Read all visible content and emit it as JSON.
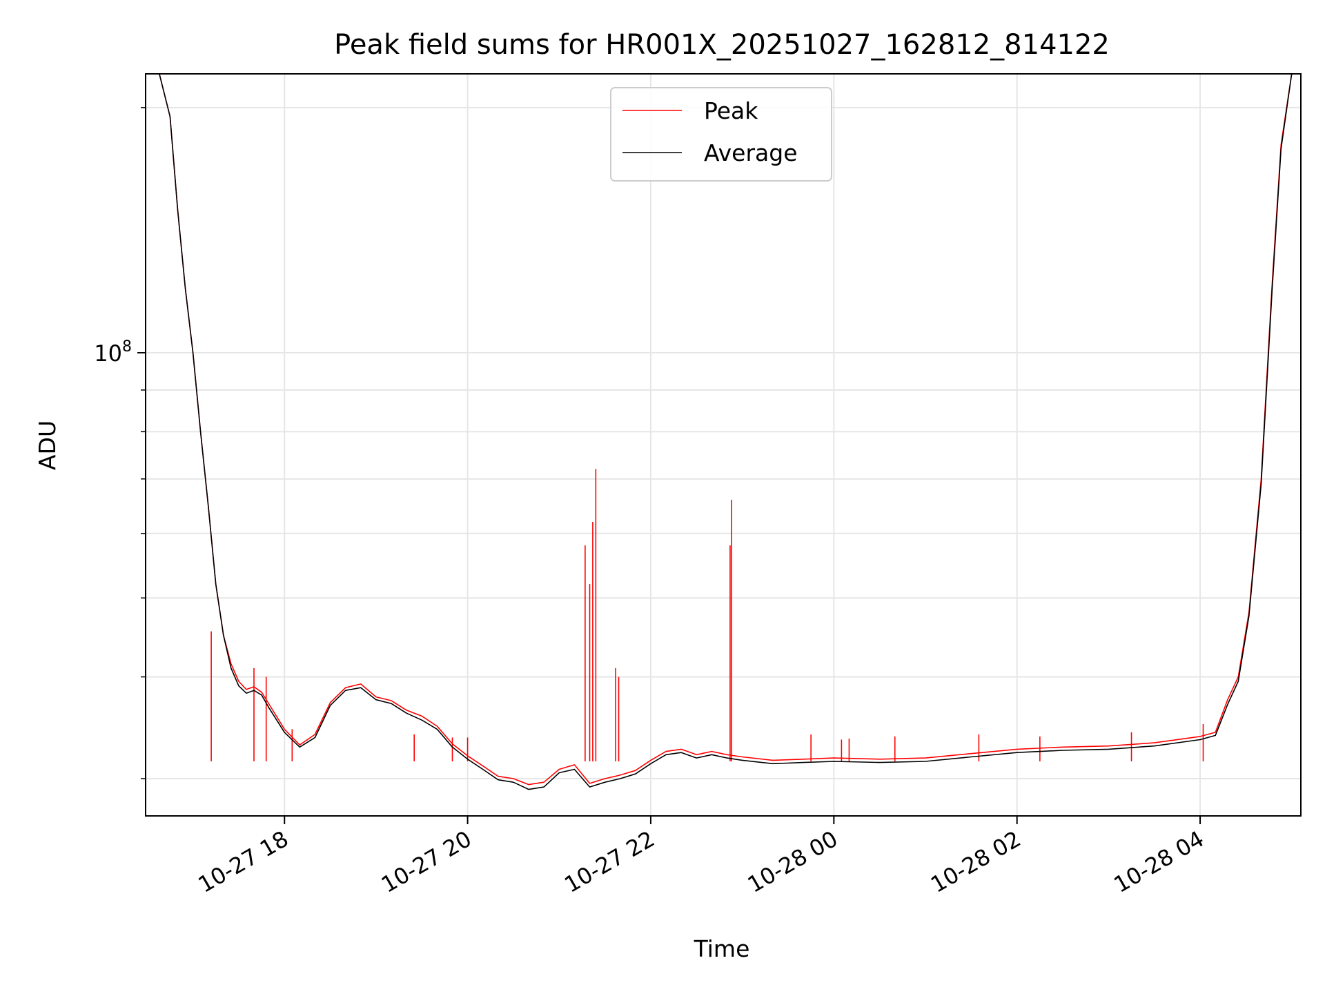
{
  "chart_data": {
    "type": "line",
    "title": "Peak field sums for HR001X_20251027_162812_814122",
    "xlabel": "Time",
    "ylabel": "ADU",
    "y_scale": "log",
    "ylim": [
      27000000,
      220000000
    ],
    "xlim": [
      "2025-10-27 16:29",
      "2025-10-28 05:06"
    ],
    "grid": true,
    "legend": "upper center",
    "x_ticks": [
      "2025-10-27 18:00",
      "2025-10-27 20:00",
      "2025-10-27 22:00",
      "2025-10-28 00:00",
      "2025-10-28 02:00",
      "2025-10-28 04:00"
    ],
    "x_tick_labels": [
      "10-27 18",
      "10-27 20",
      "10-27 22",
      "10-28 00",
      "10-28 02",
      "10-28 04"
    ],
    "y_major_ticks": [
      100000000
    ],
    "y_major_tick_labels": [
      "10",
      "8"
    ],
    "y_minor_ticks": [
      30000000,
      40000000,
      50000000,
      60000000,
      70000000,
      80000000,
      90000000,
      200000000
    ],
    "series": [
      {
        "name": "Peak",
        "color": "#ff0000",
        "points": [
          [
            "2025-10-27 16:29",
            220000000
          ],
          [
            "2025-10-27 16:38",
            220000000
          ],
          [
            "2025-10-27 16:45",
            195000000
          ],
          [
            "2025-10-27 16:50",
            150000000
          ],
          [
            "2025-10-27 16:55",
            120000000
          ],
          [
            "2025-10-27 17:00",
            100000000
          ],
          [
            "2025-10-27 17:05",
            80000000
          ],
          [
            "2025-10-27 17:10",
            65000000
          ],
          [
            "2025-10-27 17:15",
            52000000
          ],
          [
            "2025-10-27 17:20",
            45000000
          ],
          [
            "2025-10-27 17:25",
            41500000
          ],
          [
            "2025-10-27 17:30",
            39500000
          ],
          [
            "2025-10-27 17:35",
            38600000
          ],
          [
            "2025-10-27 17:40",
            38900000
          ],
          [
            "2025-10-27 17:45",
            38300000
          ],
          [
            "2025-10-27 17:50",
            37000000
          ],
          [
            "2025-10-27 18:00",
            34500000
          ],
          [
            "2025-10-27 18:10",
            33000000
          ],
          [
            "2025-10-27 18:20",
            34000000
          ],
          [
            "2025-10-27 18:30",
            37200000
          ],
          [
            "2025-10-27 18:40",
            38800000
          ],
          [
            "2025-10-27 18:50",
            39200000
          ],
          [
            "2025-10-27 19:00",
            37800000
          ],
          [
            "2025-10-27 19:10",
            37400000
          ],
          [
            "2025-10-27 19:20",
            36400000
          ],
          [
            "2025-10-27 19:30",
            35800000
          ],
          [
            "2025-10-27 19:40",
            34800000
          ],
          [
            "2025-10-27 19:50",
            33100000
          ],
          [
            "2025-10-27 20:00",
            32000000
          ],
          [
            "2025-10-27 20:10",
            31100000
          ],
          [
            "2025-10-27 20:20",
            30200000
          ],
          [
            "2025-10-27 20:30",
            30000000
          ],
          [
            "2025-10-27 20:40",
            29500000
          ],
          [
            "2025-10-27 20:50",
            29700000
          ],
          [
            "2025-10-27 21:00",
            30800000
          ],
          [
            "2025-10-27 21:10",
            31200000
          ],
          [
            "2025-10-27 21:20",
            29600000
          ],
          [
            "2025-10-27 21:30",
            30000000
          ],
          [
            "2025-10-27 21:40",
            30300000
          ],
          [
            "2025-10-27 21:50",
            30700000
          ],
          [
            "2025-10-27 22:00",
            31600000
          ],
          [
            "2025-10-27 22:10",
            32400000
          ],
          [
            "2025-10-27 22:20",
            32600000
          ],
          [
            "2025-10-27 22:30",
            32100000
          ],
          [
            "2025-10-27 22:40",
            32400000
          ],
          [
            "2025-10-27 22:50",
            32100000
          ],
          [
            "2025-10-27 23:00",
            31900000
          ],
          [
            "2025-10-27 23:20",
            31600000
          ],
          [
            "2025-10-27 23:40",
            31700000
          ],
          [
            "2025-10-28 00:00",
            31800000
          ],
          [
            "2025-10-28 00:30",
            31700000
          ],
          [
            "2025-10-28 01:00",
            31800000
          ],
          [
            "2025-10-28 01:30",
            32200000
          ],
          [
            "2025-10-28 02:00",
            32600000
          ],
          [
            "2025-10-28 02:30",
            32800000
          ],
          [
            "2025-10-28 03:00",
            32900000
          ],
          [
            "2025-10-28 03:30",
            33200000
          ],
          [
            "2025-10-28 04:00",
            33800000
          ],
          [
            "2025-10-28 04:10",
            34200000
          ],
          [
            "2025-10-28 04:18",
            37500000
          ],
          [
            "2025-10-28 04:25",
            40000000
          ],
          [
            "2025-10-28 04:32",
            48000000
          ],
          [
            "2025-10-28 04:40",
            70000000
          ],
          [
            "2025-10-28 04:47",
            120000000
          ],
          [
            "2025-10-28 04:53",
            180000000
          ],
          [
            "2025-10-28 05:00",
            220000000
          ],
          [
            "2025-10-28 05:06",
            220000000
          ]
        ],
        "spikes": [
          [
            "2025-10-27 17:12",
            45500000
          ],
          [
            "2025-10-27 17:40",
            41000000
          ],
          [
            "2025-10-27 17:48",
            40000000
          ],
          [
            "2025-10-27 18:05",
            34500000
          ],
          [
            "2025-10-27 19:25",
            34000000
          ],
          [
            "2025-10-27 19:50",
            33700000
          ],
          [
            "2025-10-27 20:00",
            33700000
          ],
          [
            "2025-10-27 21:17",
            58000000
          ],
          [
            "2025-10-27 21:20",
            52000000
          ],
          [
            "2025-10-27 21:22",
            62000000
          ],
          [
            "2025-10-27 21:24",
            72000000
          ],
          [
            "2025-10-27 21:37",
            41000000
          ],
          [
            "2025-10-27 21:39",
            40000000
          ],
          [
            "2025-10-27 22:52",
            58000000
          ],
          [
            "2025-10-27 22:53",
            66000000
          ],
          [
            "2025-10-27 23:45",
            34000000
          ],
          [
            "2025-10-28 00:05",
            33500000
          ],
          [
            "2025-10-28 00:10",
            33600000
          ],
          [
            "2025-10-28 00:40",
            33800000
          ],
          [
            "2025-10-28 01:35",
            34000000
          ],
          [
            "2025-10-28 02:15",
            33800000
          ],
          [
            "2025-10-28 03:15",
            34200000
          ],
          [
            "2025-10-28 04:02",
            35000000
          ]
        ]
      },
      {
        "name": "Average",
        "color": "#000000",
        "points": [
          [
            "2025-10-27 16:29",
            220000000
          ],
          [
            "2025-10-27 16:38",
            220000000
          ],
          [
            "2025-10-27 16:45",
            195000000
          ],
          [
            "2025-10-27 16:50",
            150000000
          ],
          [
            "2025-10-27 16:55",
            120000000
          ],
          [
            "2025-10-27 17:00",
            100000000
          ],
          [
            "2025-10-27 17:05",
            80000000
          ],
          [
            "2025-10-27 17:10",
            65000000
          ],
          [
            "2025-10-27 17:15",
            52000000
          ],
          [
            "2025-10-27 17:20",
            45000000
          ],
          [
            "2025-10-27 17:25",
            41000000
          ],
          [
            "2025-10-27 17:30",
            39000000
          ],
          [
            "2025-10-27 17:35",
            38200000
          ],
          [
            "2025-10-27 17:40",
            38500000
          ],
          [
            "2025-10-27 17:45",
            38000000
          ],
          [
            "2025-10-27 17:50",
            36600000
          ],
          [
            "2025-10-27 18:00",
            34200000
          ],
          [
            "2025-10-27 18:10",
            32800000
          ],
          [
            "2025-10-27 18:20",
            33700000
          ],
          [
            "2025-10-27 18:30",
            36900000
          ],
          [
            "2025-10-27 18:40",
            38500000
          ],
          [
            "2025-10-27 18:50",
            38800000
          ],
          [
            "2025-10-27 19:00",
            37500000
          ],
          [
            "2025-10-27 19:10",
            37100000
          ],
          [
            "2025-10-27 19:20",
            36100000
          ],
          [
            "2025-10-27 19:30",
            35400000
          ],
          [
            "2025-10-27 19:40",
            34500000
          ],
          [
            "2025-10-27 19:50",
            32800000
          ],
          [
            "2025-10-27 20:00",
            31700000
          ],
          [
            "2025-10-27 20:10",
            30800000
          ],
          [
            "2025-10-27 20:20",
            29900000
          ],
          [
            "2025-10-27 20:30",
            29700000
          ],
          [
            "2025-10-27 20:40",
            29100000
          ],
          [
            "2025-10-27 20:50",
            29300000
          ],
          [
            "2025-10-27 21:00",
            30500000
          ],
          [
            "2025-10-27 21:10",
            30800000
          ],
          [
            "2025-10-27 21:20",
            29300000
          ],
          [
            "2025-10-27 21:30",
            29700000
          ],
          [
            "2025-10-27 21:40",
            30000000
          ],
          [
            "2025-10-27 21:50",
            30400000
          ],
          [
            "2025-10-27 22:00",
            31300000
          ],
          [
            "2025-10-27 22:10",
            32100000
          ],
          [
            "2025-10-27 22:20",
            32300000
          ],
          [
            "2025-10-27 22:30",
            31800000
          ],
          [
            "2025-10-27 22:40",
            32100000
          ],
          [
            "2025-10-27 22:50",
            31800000
          ],
          [
            "2025-10-27 23:00",
            31600000
          ],
          [
            "2025-10-27 23:20",
            31300000
          ],
          [
            "2025-10-27 23:40",
            31400000
          ],
          [
            "2025-10-28 00:00",
            31500000
          ],
          [
            "2025-10-28 00:30",
            31400000
          ],
          [
            "2025-10-28 01:00",
            31500000
          ],
          [
            "2025-10-28 01:30",
            31900000
          ],
          [
            "2025-10-28 02:00",
            32300000
          ],
          [
            "2025-10-28 02:30",
            32500000
          ],
          [
            "2025-10-28 03:00",
            32600000
          ],
          [
            "2025-10-28 03:30",
            32900000
          ],
          [
            "2025-10-28 04:00",
            33500000
          ],
          [
            "2025-10-28 04:10",
            33900000
          ],
          [
            "2025-10-28 04:18",
            37000000
          ],
          [
            "2025-10-28 04:25",
            39500000
          ],
          [
            "2025-10-28 04:32",
            47500000
          ],
          [
            "2025-10-28 04:40",
            69000000
          ],
          [
            "2025-10-28 04:47",
            118000000
          ],
          [
            "2025-10-28 04:53",
            178000000
          ],
          [
            "2025-10-28 05:00",
            220000000
          ],
          [
            "2025-10-28 05:06",
            220000000
          ]
        ]
      }
    ]
  }
}
